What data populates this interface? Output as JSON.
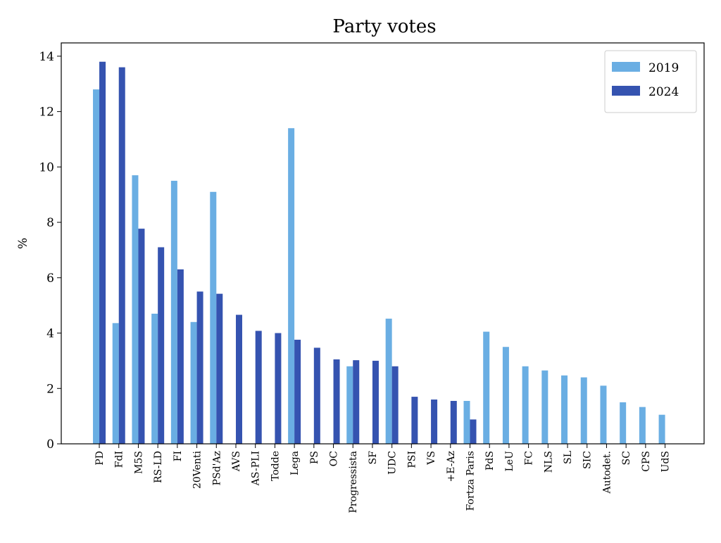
{
  "chart_data": {
    "type": "bar",
    "title": "Party votes",
    "ylabel": "%",
    "categories": [
      "PD",
      "FdI",
      "M5S",
      "RS-LD",
      "FI",
      "20Venti",
      "PSd'Az",
      "AVS",
      "AS-PLI",
      "Todde",
      "Lega",
      "PS",
      "OC",
      "Progressista",
      "SF",
      "UDC",
      "PSI",
      "VS",
      "+E-Az",
      "Fortza Paris",
      "PdS",
      "LeU",
      "FC",
      "NLS",
      "SL",
      "SIC",
      "Autodet.",
      "SC",
      "CPS",
      "UdS"
    ],
    "series": [
      {
        "name": "2019",
        "color": "#6aaee3",
        "values": [
          12.8,
          4.36,
          9.7,
          4.7,
          9.5,
          4.4,
          9.1,
          null,
          null,
          null,
          11.4,
          null,
          null,
          2.8,
          null,
          4.52,
          null,
          null,
          null,
          1.55,
          4.05,
          3.5,
          2.8,
          2.65,
          2.47,
          2.4,
          2.1,
          1.5,
          1.33,
          1.05
        ]
      },
      {
        "name": "2024",
        "color": "#3553b0",
        "values": [
          13.8,
          13.6,
          7.77,
          7.1,
          6.3,
          5.5,
          5.42,
          4.66,
          4.08,
          4.0,
          3.76,
          3.47,
          3.05,
          3.02,
          3.0,
          2.8,
          1.7,
          1.6,
          1.55,
          0.88,
          null,
          null,
          null,
          null,
          null,
          null,
          null,
          null,
          null,
          null
        ]
      }
    ],
    "ylim": [
      0,
      14.48
    ],
    "yticks": [
      0,
      2,
      4,
      6,
      8,
      10,
      12,
      14
    ],
    "legend": "upper right"
  }
}
